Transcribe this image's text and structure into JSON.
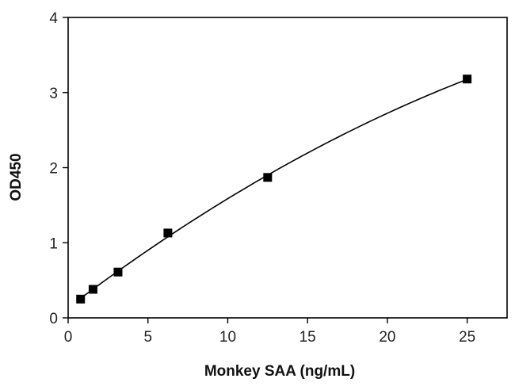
{
  "chart_data": {
    "type": "scatter",
    "title": "",
    "xlabel": "Monkey SAA (ng/mL)",
    "ylabel": "OD450",
    "xlim": [
      0,
      27.5
    ],
    "ylim": [
      0,
      4
    ],
    "xticks": [
      0,
      5,
      10,
      15,
      20,
      25
    ],
    "yticks": [
      0,
      1,
      2,
      3,
      4
    ],
    "grid": false,
    "legend": "none",
    "series": [
      {
        "marker": "square",
        "x": [
          0.78,
          1.56,
          3.125,
          6.25,
          12.5,
          25
        ],
        "y": [
          0.25,
          0.38,
          0.61,
          1.13,
          1.87,
          3.18
        ],
        "fit": "smooth curve"
      }
    ],
    "colors": {
      "marker": "#000000",
      "line": "#000000"
    }
  }
}
